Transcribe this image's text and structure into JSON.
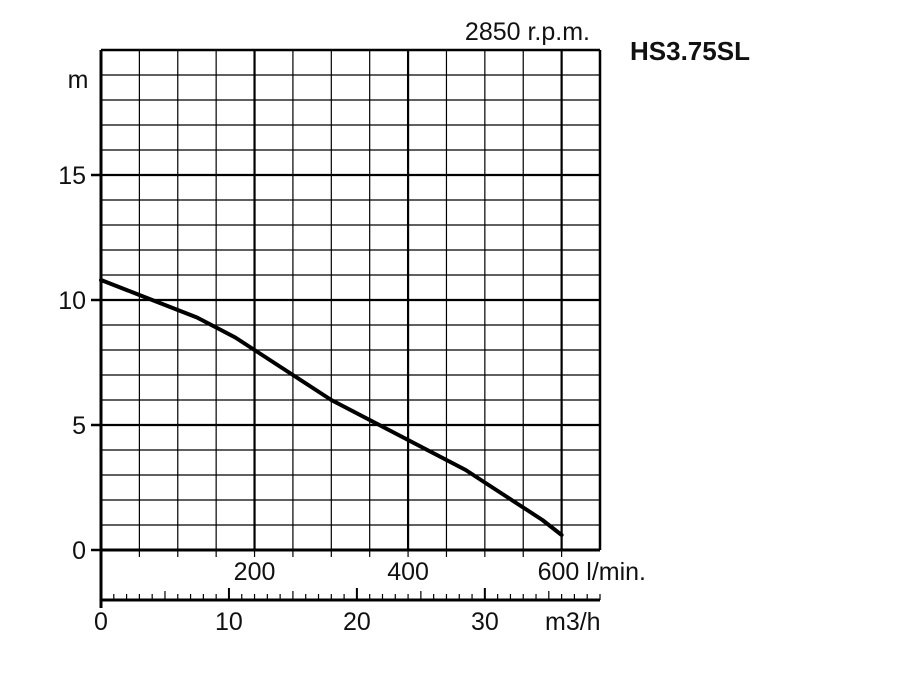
{
  "chart_data": {
    "type": "line",
    "title": "HS3.75SL",
    "subtitle": "2850 r.p.m.",
    "ylabel": "m",
    "ylim": [
      0,
      20
    ],
    "y_ticks": [
      "0",
      "5",
      "10",
      "15"
    ],
    "x_lmin": {
      "label": "l/min.",
      "xlim": [
        0,
        650
      ],
      "ticks": [
        "200",
        "400",
        "600"
      ]
    },
    "x_m3h": {
      "label": "m3/h",
      "ticks": [
        "0",
        "10",
        "20",
        "30"
      ]
    },
    "grid": true,
    "series": [
      {
        "x": [
          0,
          25,
          50,
          75,
          100,
          125,
          150,
          175,
          200,
          225,
          250,
          275,
          300,
          325,
          350,
          375,
          400,
          425,
          450,
          475,
          500,
          525,
          550,
          575,
          600
        ],
        "y": [
          10.8,
          10.5,
          10.2,
          9.9,
          9.6,
          9.3,
          8.9,
          8.5,
          8.0,
          7.5,
          7.0,
          6.5,
          6.0,
          5.6,
          5.2,
          4.8,
          4.4,
          4.0,
          3.6,
          3.2,
          2.7,
          2.2,
          1.7,
          1.2,
          0.6
        ],
        "color": "#000000"
      }
    ]
  }
}
